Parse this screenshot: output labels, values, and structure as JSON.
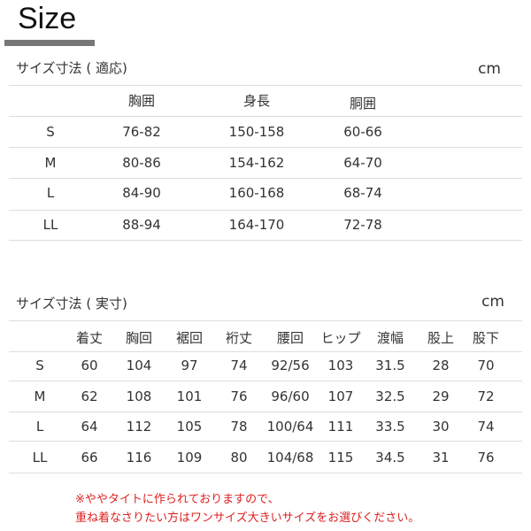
{
  "title": "Size",
  "fit_table": {
    "heading": "サイズ寸法 ( 適応)",
    "unit": "cm",
    "columns": [
      "",
      "胸囲",
      "身長",
      "胴囲"
    ],
    "rows": [
      [
        "S",
        "76-82",
        "150-158",
        "60-66"
      ],
      [
        "M",
        "80-86",
        "154-162",
        "64-70"
      ],
      [
        "L",
        "84-90",
        "160-168",
        "68-74"
      ],
      [
        "LL",
        "88-94",
        "164-170",
        "72-78"
      ]
    ]
  },
  "actual_table": {
    "heading": "サイズ寸法 ( 実寸)",
    "unit": "cm",
    "columns": [
      "",
      "着丈",
      "胸回",
      "裾回",
      "裄丈",
      "腰回",
      "ヒップ",
      "渡幅",
      "股上",
      "股下"
    ],
    "rows": [
      [
        "S",
        "60",
        "104",
        "97",
        "74",
        "92/56",
        "103",
        "31.5",
        "28",
        "70"
      ],
      [
        "M",
        "62",
        "108",
        "101",
        "76",
        "96/60",
        "107",
        "32.5",
        "29",
        "72"
      ],
      [
        "L",
        "64",
        "112",
        "105",
        "78",
        "100/64",
        "111",
        "33.5",
        "30",
        "74"
      ],
      [
        "LL",
        "66",
        "116",
        "109",
        "80",
        "104/68",
        "115",
        "34.5",
        "31",
        "76"
      ]
    ]
  },
  "notes": [
    "※ややタイトに作られておりますので、",
    "重ね着なさりたい方はワンサイズ大きいサイズをお選びください。"
  ],
  "colors": {
    "note": "#e02020",
    "bar": "#777777",
    "divider": "#dddddd"
  }
}
